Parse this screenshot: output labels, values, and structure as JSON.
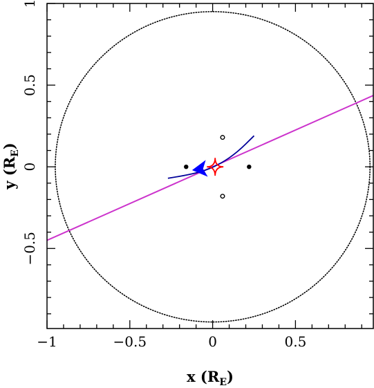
{
  "chart_data": {
    "type": "scatter",
    "title": "",
    "xlabel": "x (R",
    "xlabel_sub": "E",
    "xlabel_close": ")",
    "ylabel": "y (R",
    "ylabel_sub": "E",
    "ylabel_close": ")",
    "xlim": [
      -1.0,
      0.97
    ],
    "ylim": [
      -0.99,
      1.0
    ],
    "x_ticks": [
      -1,
      -0.5,
      0,
      0.5
    ],
    "x_tick_labels": [
      "−1",
      "−0.5",
      "0",
      "0.5"
    ],
    "y_ticks": [
      -0.5,
      0,
      0.5,
      1
    ],
    "y_tick_labels": [
      "−0.5",
      "0",
      "0.5",
      "1"
    ],
    "grid": false,
    "einstein_ring": {
      "center": [
        0,
        0
      ],
      "radius": 0.95,
      "style": "dotted",
      "color": "#000000"
    },
    "source_trajectory": {
      "slope": 0.45,
      "intercept": 0.0,
      "color": "#cc33cc"
    },
    "lens_trajectory": {
      "color": "#000099",
      "points": [
        [
          -0.27,
          -0.07
        ],
        [
          -0.15,
          -0.05
        ],
        [
          -0.05,
          -0.025
        ],
        [
          0.05,
          0.02
        ],
        [
          0.15,
          0.09
        ],
        [
          0.25,
          0.19
        ]
      ]
    },
    "arrow": {
      "from": [
        -0.04,
        -0.01
      ],
      "to": [
        -0.12,
        -0.02
      ],
      "color": "#0000ff"
    },
    "caustic": {
      "center": [
        0.015,
        0.0
      ],
      "half_width": 0.05,
      "half_height": 0.055,
      "color": "#ff0000"
    },
    "lens_components_filled": [
      [
        -0.16,
        0.0
      ],
      [
        0.22,
        0.0
      ]
    ],
    "image_positions_open": [
      [
        0.06,
        0.18
      ],
      [
        0.06,
        -0.18
      ]
    ]
  }
}
